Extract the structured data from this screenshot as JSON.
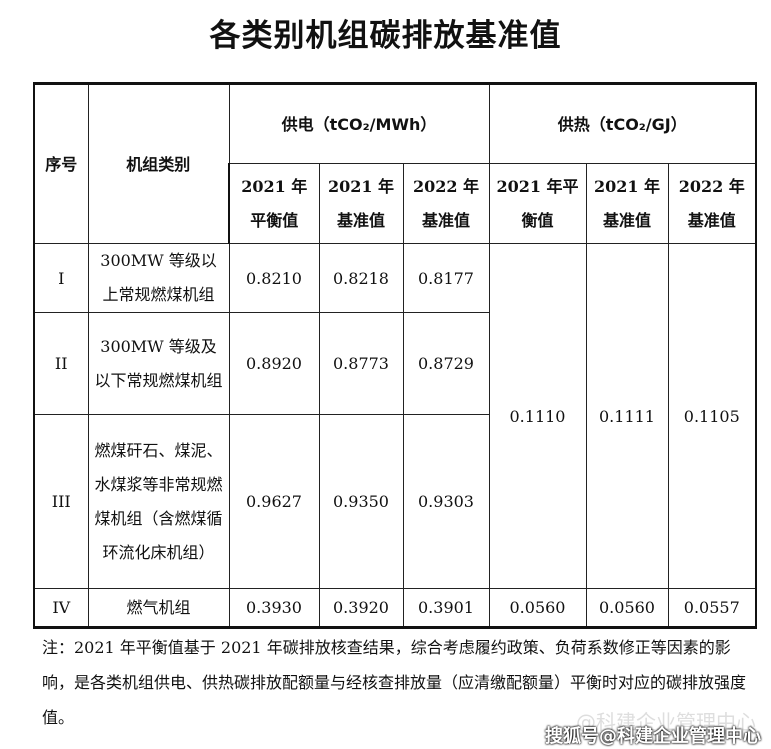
{
  "title": "各类别机组碳排放基准值",
  "table": {
    "headers": {
      "seq": "序号",
      "category": "机组类别",
      "power_group": "供电（tCO₂/MWh）",
      "heat_group": "供热（tCO₂/GJ）",
      "power_cols": [
        [
          "2021 年",
          "平衡值"
        ],
        [
          "2021 年",
          "基准值"
        ],
        [
          "2022 年",
          "基准值"
        ]
      ],
      "heat_cols": [
        [
          "2021 年平",
          "衡值"
        ],
        [
          "2021 年",
          "基准值"
        ],
        [
          "2022 年",
          "基准值"
        ]
      ]
    },
    "rows": [
      {
        "seq": "I",
        "category": "300MW 等级以上常规燃煤机组",
        "power": [
          "0.8210",
          "0.8218",
          "0.8177"
        ]
      },
      {
        "seq": "II",
        "category": "300MW 等级及以下常规燃煤机组",
        "power": [
          "0.8920",
          "0.8773",
          "0.8729"
        ]
      },
      {
        "seq": "III",
        "category": "燃煤矸石、煤泥、水煤浆等非常规燃煤机组（含燃煤循环流化床机组）",
        "power": [
          "0.9627",
          "0.9350",
          "0.9303"
        ]
      },
      {
        "seq": "IV",
        "category": "燃气机组",
        "power": [
          "0.3930",
          "0.3920",
          "0.3901"
        ],
        "heat": [
          "0.0560",
          "0.0560",
          "0.0557"
        ]
      }
    ],
    "coal_heat_merged": [
      "0.1110",
      "0.1111",
      "0.1105"
    ]
  },
  "note": "注：2021 年平衡值基于 2021 年碳排放核查结果，综合考虑履约政策、负荷系数修正等因素的影响，是各类机组供电、供热碳排放配额量与经核查排放量（应清缴配额量）平衡时对应的碳排放强度值。",
  "watermark": {
    "faint": "@科建企业管理中心",
    "main": "搜狐号@科建企业管理中心"
  }
}
